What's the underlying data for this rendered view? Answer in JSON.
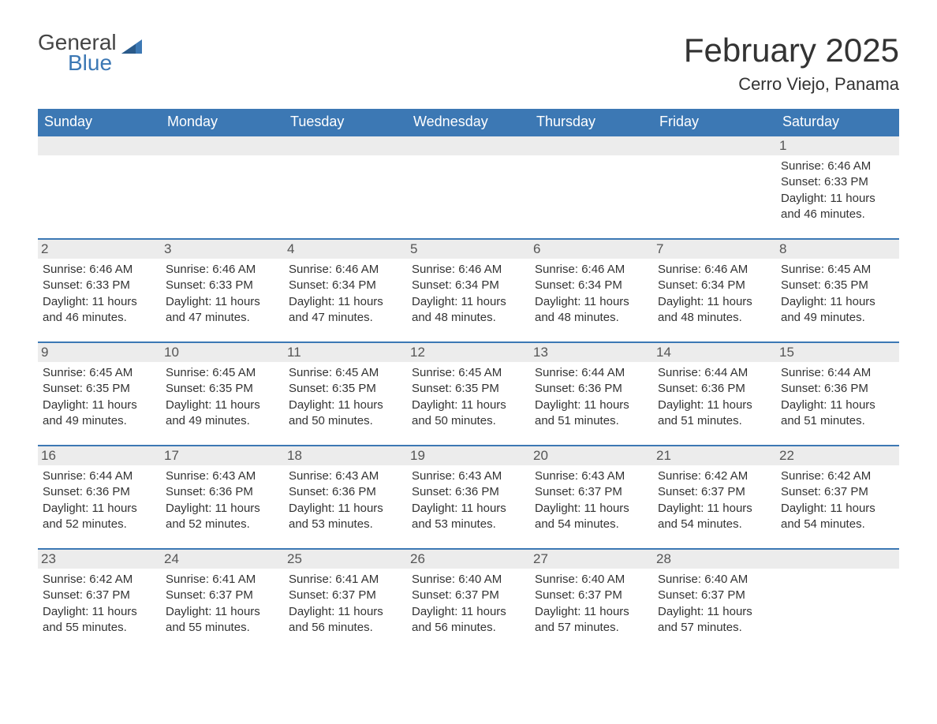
{
  "logo": {
    "text1": "General",
    "text2": "Blue",
    "flag_color": "#3c78b4"
  },
  "title": "February 2025",
  "location": "Cerro Viejo, Panama",
  "colors": {
    "header_bg": "#3c78b4",
    "header_text": "#ffffff",
    "day_border": "#3c78b4",
    "daynum_bg": "#ececec",
    "body_text": "#333333",
    "page_bg": "#ffffff"
  },
  "typography": {
    "title_fontsize": 42,
    "location_fontsize": 22,
    "dow_fontsize": 18,
    "daynum_fontsize": 17,
    "info_fontsize": 15,
    "font_family": "Arial"
  },
  "layout": {
    "columns": 7,
    "rows": 5,
    "first_day_of_week": "Sunday"
  },
  "days_of_week": [
    "Sunday",
    "Monday",
    "Tuesday",
    "Wednesday",
    "Thursday",
    "Friday",
    "Saturday"
  ],
  "weeks": [
    [
      {
        "empty": true
      },
      {
        "empty": true
      },
      {
        "empty": true
      },
      {
        "empty": true
      },
      {
        "empty": true
      },
      {
        "empty": true
      },
      {
        "num": "1",
        "sunrise": "Sunrise: 6:46 AM",
        "sunset": "Sunset: 6:33 PM",
        "daylight": "Daylight: 11 hours and 46 minutes."
      }
    ],
    [
      {
        "num": "2",
        "sunrise": "Sunrise: 6:46 AM",
        "sunset": "Sunset: 6:33 PM",
        "daylight": "Daylight: 11 hours and 46 minutes."
      },
      {
        "num": "3",
        "sunrise": "Sunrise: 6:46 AM",
        "sunset": "Sunset: 6:33 PM",
        "daylight": "Daylight: 11 hours and 47 minutes."
      },
      {
        "num": "4",
        "sunrise": "Sunrise: 6:46 AM",
        "sunset": "Sunset: 6:34 PM",
        "daylight": "Daylight: 11 hours and 47 minutes."
      },
      {
        "num": "5",
        "sunrise": "Sunrise: 6:46 AM",
        "sunset": "Sunset: 6:34 PM",
        "daylight": "Daylight: 11 hours and 48 minutes."
      },
      {
        "num": "6",
        "sunrise": "Sunrise: 6:46 AM",
        "sunset": "Sunset: 6:34 PM",
        "daylight": "Daylight: 11 hours and 48 minutes."
      },
      {
        "num": "7",
        "sunrise": "Sunrise: 6:46 AM",
        "sunset": "Sunset: 6:34 PM",
        "daylight": "Daylight: 11 hours and 48 minutes."
      },
      {
        "num": "8",
        "sunrise": "Sunrise: 6:45 AM",
        "sunset": "Sunset: 6:35 PM",
        "daylight": "Daylight: 11 hours and 49 minutes."
      }
    ],
    [
      {
        "num": "9",
        "sunrise": "Sunrise: 6:45 AM",
        "sunset": "Sunset: 6:35 PM",
        "daylight": "Daylight: 11 hours and 49 minutes."
      },
      {
        "num": "10",
        "sunrise": "Sunrise: 6:45 AM",
        "sunset": "Sunset: 6:35 PM",
        "daylight": "Daylight: 11 hours and 49 minutes."
      },
      {
        "num": "11",
        "sunrise": "Sunrise: 6:45 AM",
        "sunset": "Sunset: 6:35 PM",
        "daylight": "Daylight: 11 hours and 50 minutes."
      },
      {
        "num": "12",
        "sunrise": "Sunrise: 6:45 AM",
        "sunset": "Sunset: 6:35 PM",
        "daylight": "Daylight: 11 hours and 50 minutes."
      },
      {
        "num": "13",
        "sunrise": "Sunrise: 6:44 AM",
        "sunset": "Sunset: 6:36 PM",
        "daylight": "Daylight: 11 hours and 51 minutes."
      },
      {
        "num": "14",
        "sunrise": "Sunrise: 6:44 AM",
        "sunset": "Sunset: 6:36 PM",
        "daylight": "Daylight: 11 hours and 51 minutes."
      },
      {
        "num": "15",
        "sunrise": "Sunrise: 6:44 AM",
        "sunset": "Sunset: 6:36 PM",
        "daylight": "Daylight: 11 hours and 51 minutes."
      }
    ],
    [
      {
        "num": "16",
        "sunrise": "Sunrise: 6:44 AM",
        "sunset": "Sunset: 6:36 PM",
        "daylight": "Daylight: 11 hours and 52 minutes."
      },
      {
        "num": "17",
        "sunrise": "Sunrise: 6:43 AM",
        "sunset": "Sunset: 6:36 PM",
        "daylight": "Daylight: 11 hours and 52 minutes."
      },
      {
        "num": "18",
        "sunrise": "Sunrise: 6:43 AM",
        "sunset": "Sunset: 6:36 PM",
        "daylight": "Daylight: 11 hours and 53 minutes."
      },
      {
        "num": "19",
        "sunrise": "Sunrise: 6:43 AM",
        "sunset": "Sunset: 6:36 PM",
        "daylight": "Daylight: 11 hours and 53 minutes."
      },
      {
        "num": "20",
        "sunrise": "Sunrise: 6:43 AM",
        "sunset": "Sunset: 6:37 PM",
        "daylight": "Daylight: 11 hours and 54 minutes."
      },
      {
        "num": "21",
        "sunrise": "Sunrise: 6:42 AM",
        "sunset": "Sunset: 6:37 PM",
        "daylight": "Daylight: 11 hours and 54 minutes."
      },
      {
        "num": "22",
        "sunrise": "Sunrise: 6:42 AM",
        "sunset": "Sunset: 6:37 PM",
        "daylight": "Daylight: 11 hours and 54 minutes."
      }
    ],
    [
      {
        "num": "23",
        "sunrise": "Sunrise: 6:42 AM",
        "sunset": "Sunset: 6:37 PM",
        "daylight": "Daylight: 11 hours and 55 minutes."
      },
      {
        "num": "24",
        "sunrise": "Sunrise: 6:41 AM",
        "sunset": "Sunset: 6:37 PM",
        "daylight": "Daylight: 11 hours and 55 minutes."
      },
      {
        "num": "25",
        "sunrise": "Sunrise: 6:41 AM",
        "sunset": "Sunset: 6:37 PM",
        "daylight": "Daylight: 11 hours and 56 minutes."
      },
      {
        "num": "26",
        "sunrise": "Sunrise: 6:40 AM",
        "sunset": "Sunset: 6:37 PM",
        "daylight": "Daylight: 11 hours and 56 minutes."
      },
      {
        "num": "27",
        "sunrise": "Sunrise: 6:40 AM",
        "sunset": "Sunset: 6:37 PM",
        "daylight": "Daylight: 11 hours and 57 minutes."
      },
      {
        "num": "28",
        "sunrise": "Sunrise: 6:40 AM",
        "sunset": "Sunset: 6:37 PM",
        "daylight": "Daylight: 11 hours and 57 minutes."
      },
      {
        "empty": true
      }
    ]
  ]
}
